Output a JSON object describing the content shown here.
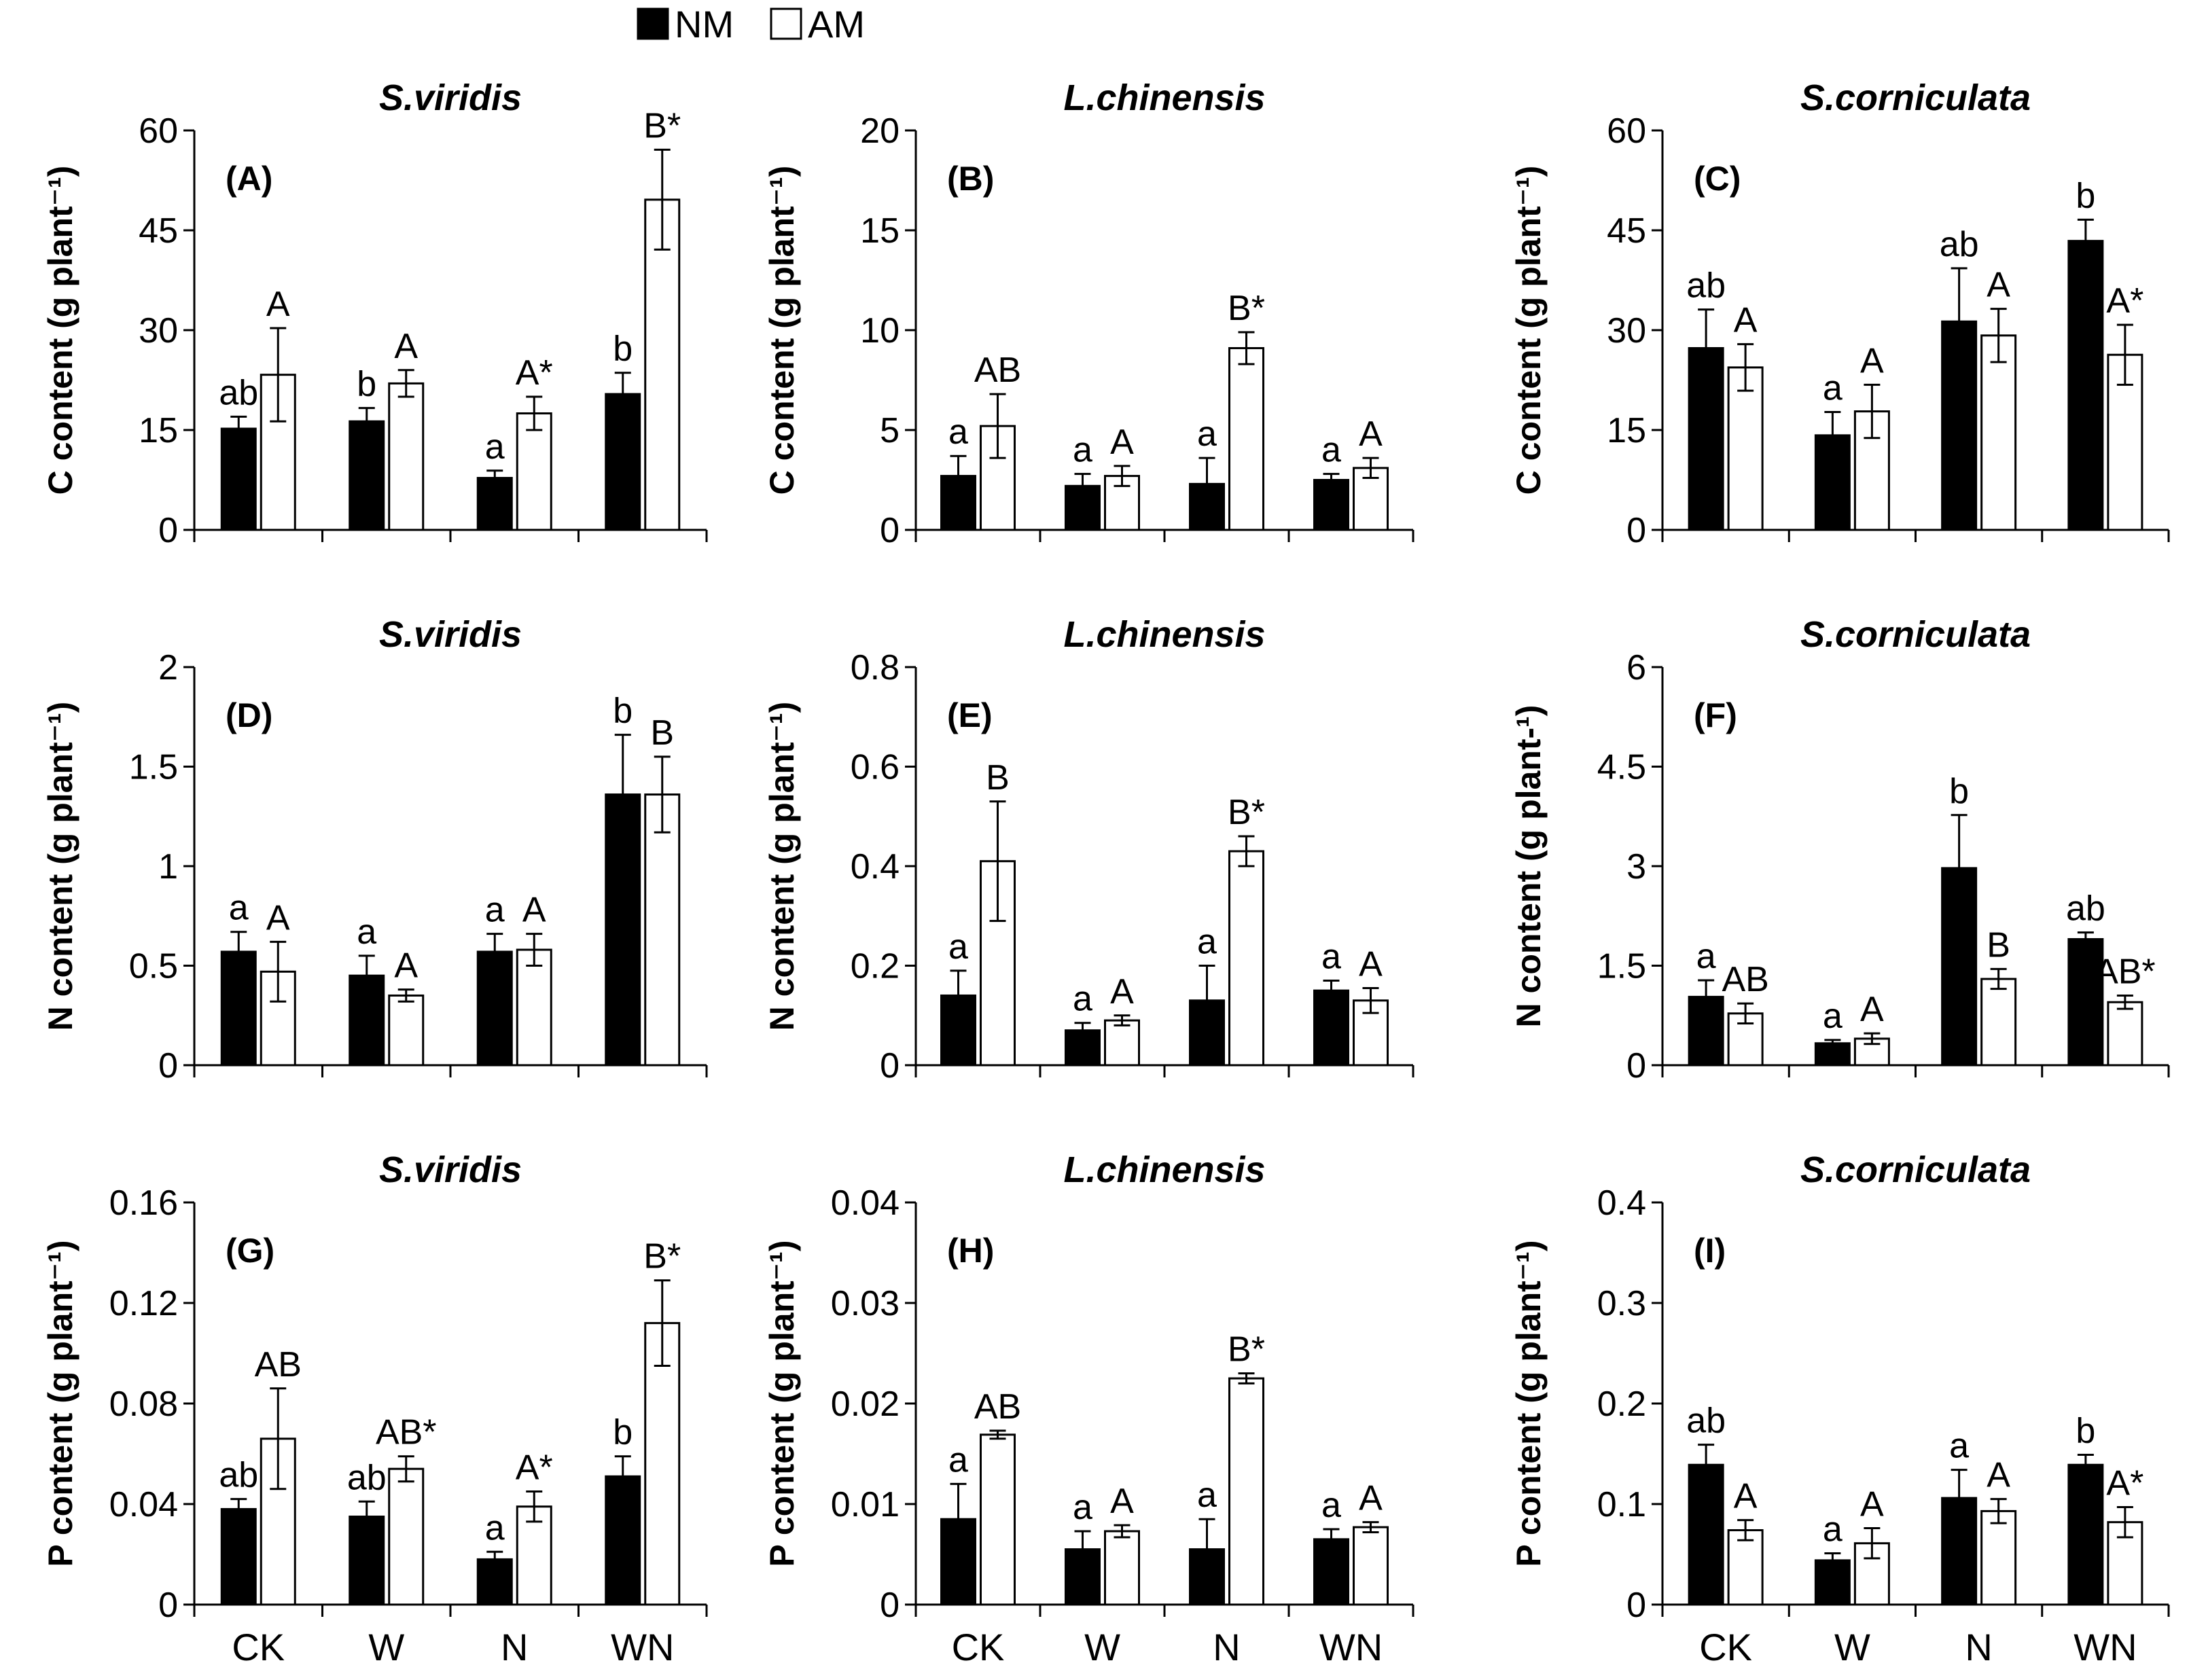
{
  "legend": {
    "nm_label": "NM",
    "am_label": "AM"
  },
  "colors": {
    "nm": "#000000",
    "am": "#ffffff",
    "axis": "#000000"
  },
  "chart_data": [
    {
      "id": "A",
      "type": "bar",
      "title": "S.viridis",
      "tag": "(A)",
      "ylabel": "C content (g plant⁻¹)",
      "ylim": [
        0,
        60
      ],
      "yticks": [
        "0",
        "15",
        "30",
        "45",
        "60"
      ],
      "categories": [
        "CK",
        "W",
        "N",
        "WN"
      ],
      "series": [
        {
          "name": "NM",
          "values": [
            15.2,
            16.3,
            7.8,
            20.4
          ],
          "errors": [
            1.8,
            2.0,
            1.1,
            3.2
          ],
          "sig_labels": [
            "ab",
            "b",
            "a",
            "b"
          ]
        },
        {
          "name": "AM",
          "values": [
            23.3,
            22.0,
            17.5,
            49.6
          ],
          "errors": [
            7.0,
            2.0,
            2.5,
            7.5
          ],
          "sig_labels": [
            "A",
            "A",
            "A*",
            "B*"
          ]
        }
      ]
    },
    {
      "id": "B",
      "type": "bar",
      "title": "L.chinensis",
      "tag": "(B)",
      "ylabel": "C content (g plant⁻¹)",
      "ylim": [
        0,
        20
      ],
      "yticks": [
        "0",
        "5",
        "10",
        "15",
        "20"
      ],
      "categories": [
        "CK",
        "W",
        "N",
        "WN"
      ],
      "series": [
        {
          "name": "NM",
          "values": [
            2.7,
            2.2,
            2.3,
            2.5
          ],
          "errors": [
            1.0,
            0.6,
            1.3,
            0.3
          ],
          "sig_labels": [
            "a",
            "a",
            "a",
            "a"
          ]
        },
        {
          "name": "AM",
          "values": [
            5.2,
            2.7,
            9.1,
            3.1
          ],
          "errors": [
            1.6,
            0.5,
            0.8,
            0.5
          ],
          "sig_labels": [
            "AB",
            "A",
            "B*",
            "A"
          ]
        }
      ]
    },
    {
      "id": "C",
      "type": "bar",
      "title": "S.corniculata",
      "tag": "(C)",
      "ylabel": "C content (g plant⁻¹)",
      "ylim": [
        0,
        60
      ],
      "yticks": [
        "0",
        "15",
        "30",
        "45",
        "60"
      ],
      "categories": [
        "CK",
        "W",
        "N",
        "WN"
      ],
      "series": [
        {
          "name": "NM",
          "values": [
            27.3,
            14.2,
            31.3,
            43.4
          ],
          "errors": [
            5.8,
            3.5,
            8.0,
            3.2
          ],
          "sig_labels": [
            "ab",
            "a",
            "ab",
            "b"
          ]
        },
        {
          "name": "AM",
          "values": [
            24.4,
            17.8,
            29.2,
            26.3
          ],
          "errors": [
            3.5,
            4.0,
            4.0,
            4.5
          ],
          "sig_labels": [
            "A",
            "A",
            "A",
            "A*"
          ]
        }
      ]
    },
    {
      "id": "D",
      "type": "bar",
      "title": "S.viridis",
      "tag": "(D)",
      "ylabel": "N content (g plant⁻¹)",
      "ylim": [
        0,
        2
      ],
      "yticks": [
        "0",
        "0.5",
        "1",
        "1.5",
        "2"
      ],
      "categories": [
        "CK",
        "W",
        "N",
        "WN"
      ],
      "series": [
        {
          "name": "NM",
          "values": [
            0.57,
            0.45,
            0.57,
            1.36
          ],
          "errors": [
            0.1,
            0.1,
            0.09,
            0.3
          ],
          "sig_labels": [
            "a",
            "a",
            "a",
            "b"
          ]
        },
        {
          "name": "AM",
          "values": [
            0.47,
            0.35,
            0.58,
            1.36
          ],
          "errors": [
            0.15,
            0.03,
            0.08,
            0.19
          ],
          "sig_labels": [
            "A",
            "A",
            "A",
            "B"
          ]
        }
      ]
    },
    {
      "id": "E",
      "type": "bar",
      "title": "L.chinensis",
      "tag": "(E)",
      "ylabel": "N content (g plant⁻¹)",
      "ylim": [
        0,
        0.8
      ],
      "yticks": [
        "0",
        "0.2",
        "0.4",
        "0.6",
        "0.8"
      ],
      "categories": [
        "CK",
        "W",
        "N",
        "WN"
      ],
      "series": [
        {
          "name": "NM",
          "values": [
            0.14,
            0.07,
            0.13,
            0.15
          ],
          "errors": [
            0.05,
            0.015,
            0.07,
            0.02
          ],
          "sig_labels": [
            "a",
            "a",
            "a",
            "a"
          ]
        },
        {
          "name": "AM",
          "values": [
            0.41,
            0.09,
            0.43,
            0.13
          ],
          "errors": [
            0.12,
            0.01,
            0.03,
            0.025
          ],
          "sig_labels": [
            "B",
            "A",
            "B*",
            "A"
          ]
        }
      ]
    },
    {
      "id": "F",
      "type": "bar",
      "title": "S.corniculata",
      "tag": "(F)",
      "ylabel": "N content (g plant-¹)",
      "ylim": [
        0,
        6
      ],
      "yticks": [
        "0",
        "1.5",
        "3",
        "4.5",
        "6"
      ],
      "categories": [
        "CK",
        "W",
        "N",
        "WN"
      ],
      "series": [
        {
          "name": "NM",
          "values": [
            1.03,
            0.33,
            2.97,
            1.9
          ],
          "errors": [
            0.25,
            0.05,
            0.8,
            0.1
          ],
          "sig_labels": [
            "a",
            "a",
            "b",
            "ab"
          ]
        },
        {
          "name": "AM",
          "values": [
            0.78,
            0.4,
            1.3,
            0.95
          ],
          "errors": [
            0.15,
            0.08,
            0.15,
            0.1
          ],
          "sig_labels": [
            "AB",
            "A",
            "B",
            "AB*"
          ]
        }
      ]
    },
    {
      "id": "G",
      "type": "bar",
      "title": "S.viridis",
      "tag": "(G)",
      "ylabel": "P content (g plant⁻¹)",
      "ylim": [
        0,
        0.16
      ],
      "yticks": [
        "0",
        "0.04",
        "0.08",
        "0.12",
        "0.16"
      ],
      "categories": [
        "CK",
        "W",
        "N",
        "WN"
      ],
      "series": [
        {
          "name": "NM",
          "values": [
            0.038,
            0.035,
            0.018,
            0.051
          ],
          "errors": [
            0.004,
            0.006,
            0.003,
            0.008
          ],
          "sig_labels": [
            "ab",
            "ab",
            "a",
            "b"
          ]
        },
        {
          "name": "AM",
          "values": [
            0.066,
            0.054,
            0.039,
            0.112
          ],
          "errors": [
            0.02,
            0.005,
            0.006,
            0.017
          ],
          "sig_labels": [
            "AB",
            "AB*",
            "A*",
            "B*"
          ]
        }
      ]
    },
    {
      "id": "H",
      "type": "bar",
      "title": "L.chinensis",
      "tag": "(H)",
      "ylabel": "P content (g plant⁻¹)",
      "ylim": [
        0,
        0.04
      ],
      "yticks": [
        "0",
        "0.01",
        "0.02",
        "0.03",
        "0.04"
      ],
      "categories": [
        "CK",
        "W",
        "N",
        "WN"
      ],
      "series": [
        {
          "name": "NM",
          "values": [
            0.0085,
            0.0055,
            0.0055,
            0.0065
          ],
          "errors": [
            0.0035,
            0.0018,
            0.003,
            0.001
          ],
          "sig_labels": [
            "a",
            "a",
            "a",
            "a"
          ]
        },
        {
          "name": "AM",
          "values": [
            0.0169,
            0.0073,
            0.0225,
            0.0077
          ],
          "errors": [
            0.0004,
            0.0006,
            0.0005,
            0.0005
          ],
          "sig_labels": [
            "AB",
            "A",
            "B*",
            "A"
          ]
        }
      ]
    },
    {
      "id": "I",
      "type": "bar",
      "title": "S.corniculata",
      "tag": "(I)",
      "ylabel": "P content (g plant⁻¹)",
      "ylim": [
        0,
        0.4
      ],
      "yticks": [
        "0",
        "0.1",
        "0.2",
        "0.3",
        "0.4"
      ],
      "categories": [
        "CK",
        "W",
        "N",
        "WN"
      ],
      "series": [
        {
          "name": "NM",
          "values": [
            0.139,
            0.044,
            0.106,
            0.139
          ],
          "errors": [
            0.02,
            0.007,
            0.028,
            0.01
          ],
          "sig_labels": [
            "ab",
            "a",
            "a",
            "b"
          ]
        },
        {
          "name": "AM",
          "values": [
            0.074,
            0.061,
            0.093,
            0.082
          ],
          "errors": [
            0.01,
            0.015,
            0.012,
            0.015
          ],
          "sig_labels": [
            "A",
            "A",
            "A",
            "A*"
          ]
        }
      ]
    }
  ]
}
